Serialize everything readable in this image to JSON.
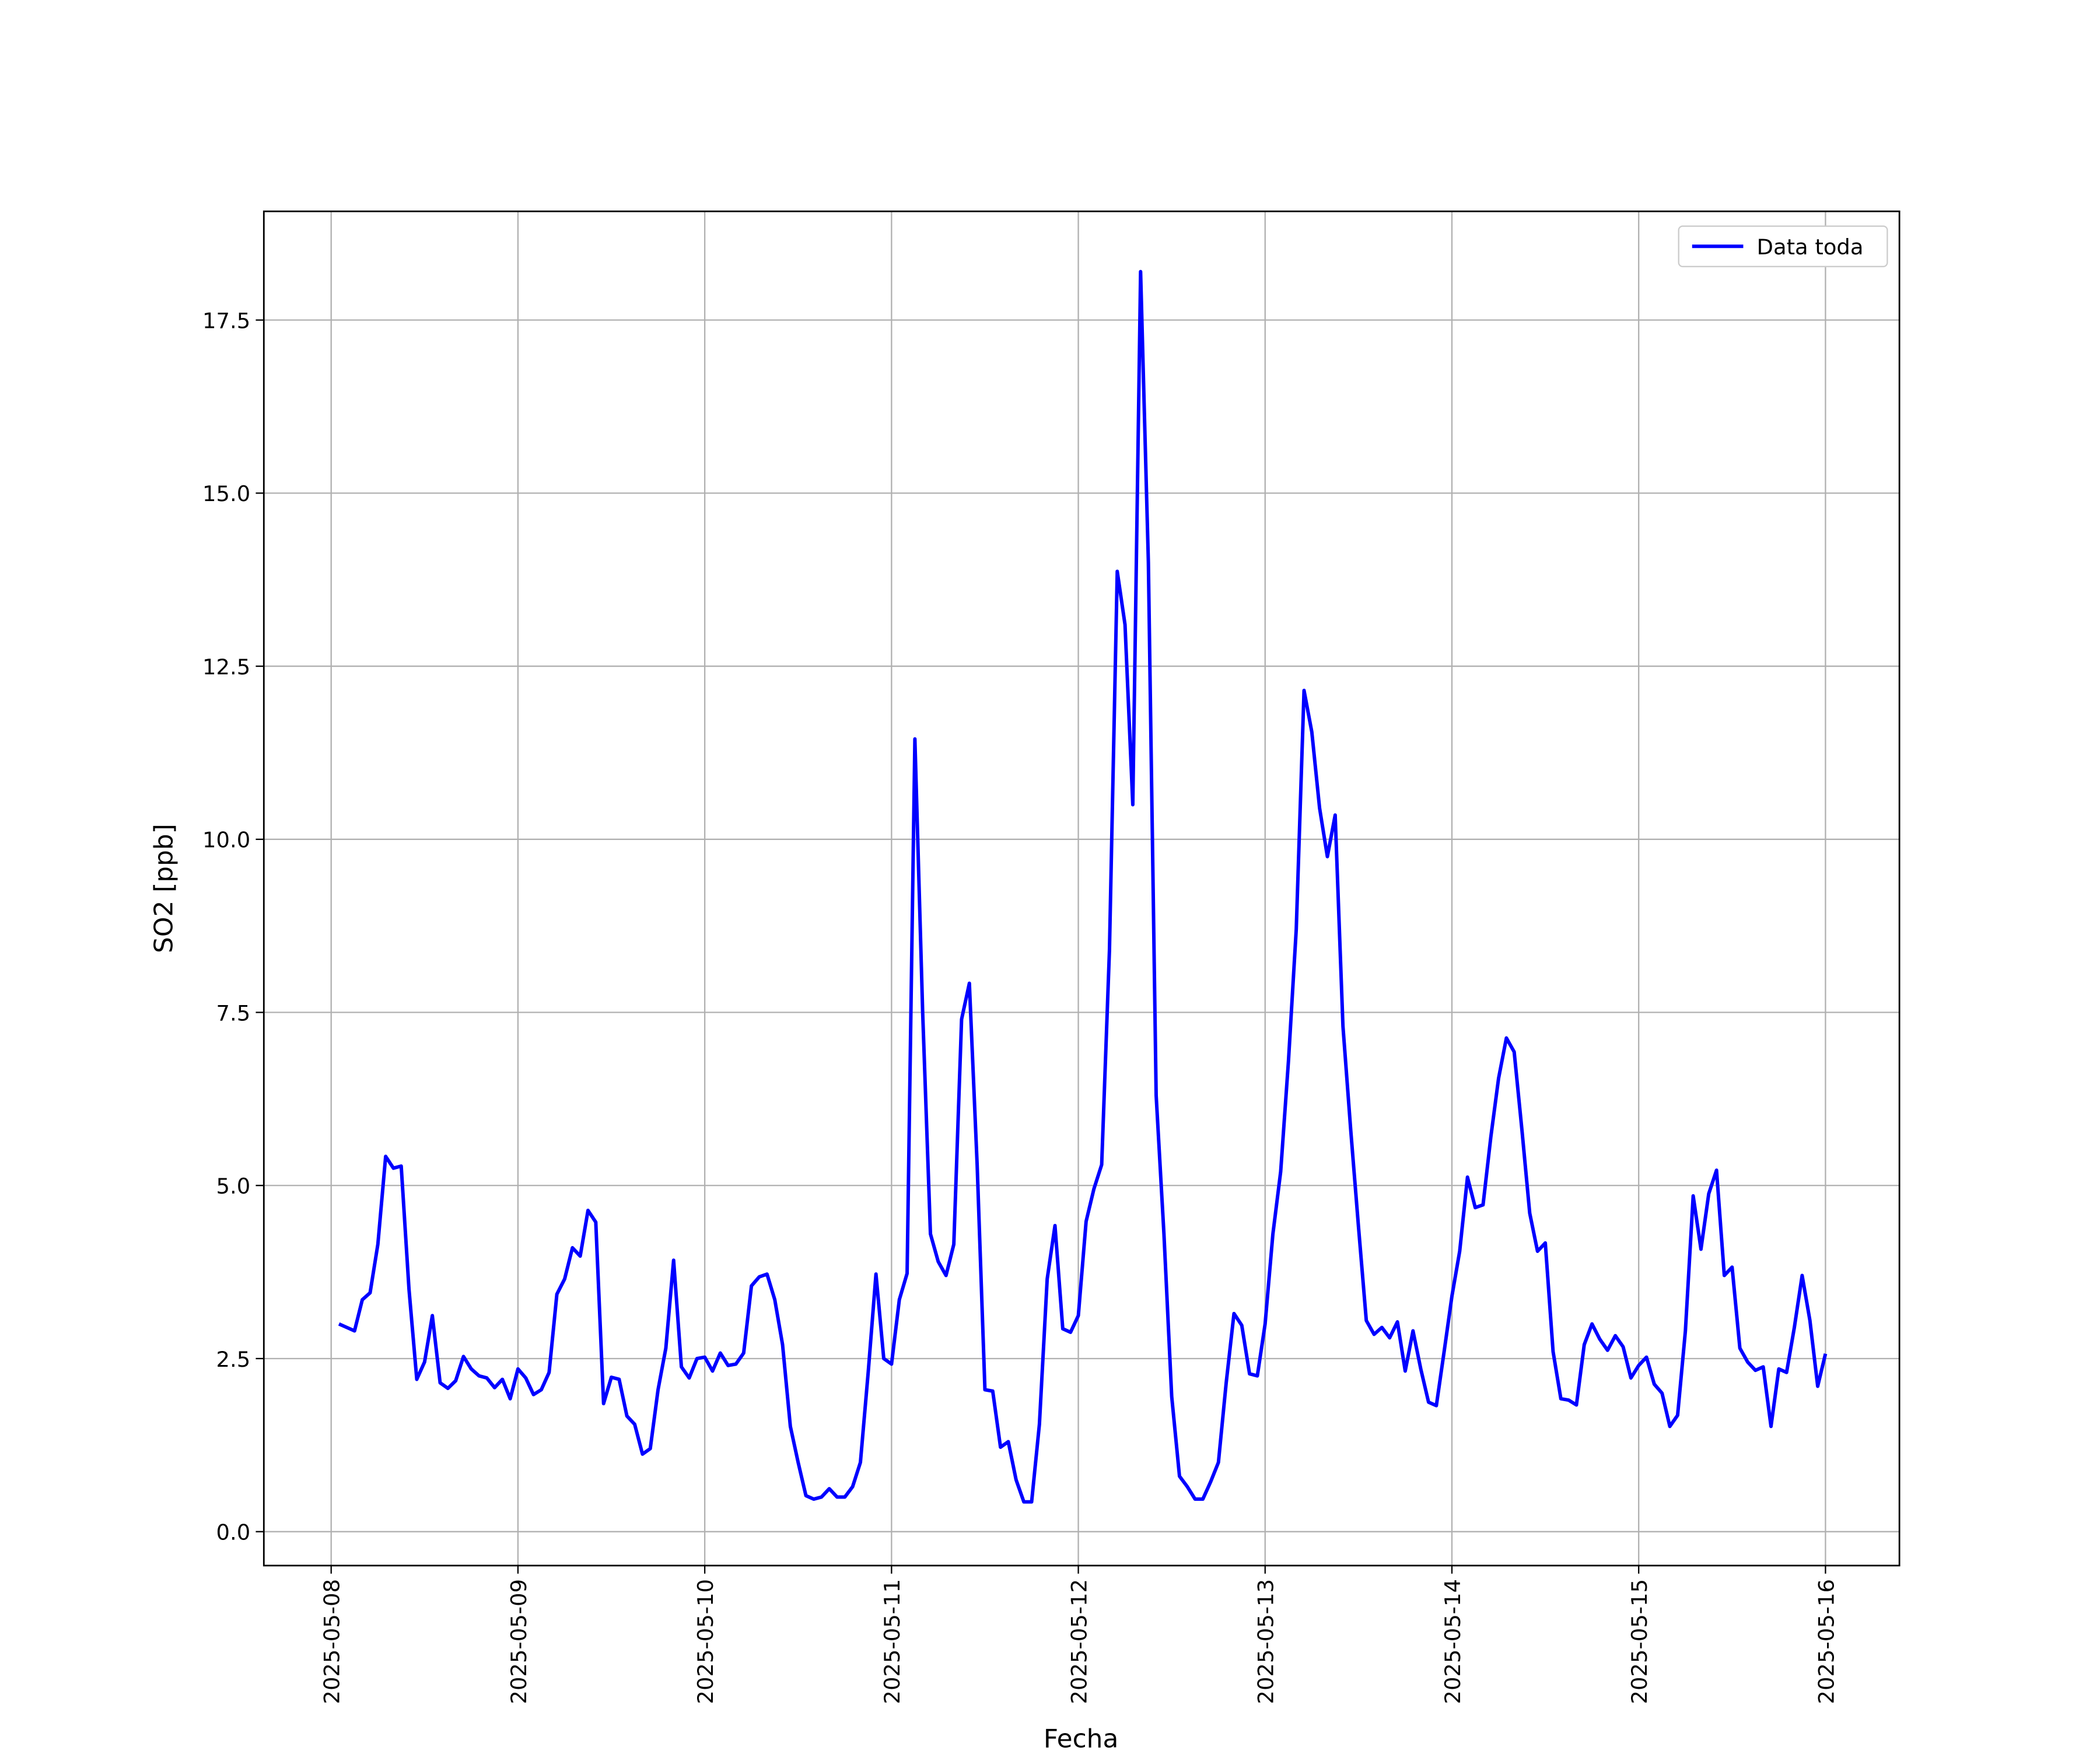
{
  "chart_data": {
    "type": "line",
    "xlabel": "Fecha",
    "ylabel": "SO2 [ppb]",
    "x": [
      1,
      2,
      3,
      4,
      5,
      6,
      7,
      8,
      9,
      10,
      11,
      12,
      13,
      14,
      15,
      16,
      17,
      18,
      19,
      20,
      21,
      22,
      23,
      24,
      25,
      26,
      27,
      28,
      29,
      30,
      31,
      32,
      33,
      34,
      35,
      36,
      37,
      38,
      39,
      40,
      41,
      42,
      43,
      44,
      45,
      46,
      47,
      48,
      49,
      50,
      51,
      52,
      53,
      54,
      55,
      56,
      57,
      58,
      59,
      60,
      61,
      62,
      63,
      64,
      65,
      66,
      67,
      68,
      69,
      70,
      71,
      72,
      73,
      74,
      75,
      76,
      77,
      78,
      79,
      80,
      81,
      82,
      83,
      84,
      85,
      86,
      87,
      88,
      89,
      90,
      91,
      92,
      93,
      94,
      95,
      96,
      97,
      98,
      99,
      100,
      101,
      102,
      103,
      104,
      105,
      106,
      107,
      108,
      109,
      110,
      111,
      112,
      113,
      114,
      115,
      116,
      117,
      118,
      119,
      120,
      121,
      122,
      123,
      124,
      125,
      126,
      127,
      128,
      129,
      130,
      131,
      132,
      133,
      134,
      135,
      136,
      137,
      138,
      139,
      140,
      141,
      142,
      143,
      144,
      145,
      146,
      147,
      148,
      149,
      150,
      151,
      152,
      153,
      154,
      155,
      156,
      157,
      158,
      159,
      160,
      161,
      162,
      163,
      164,
      165,
      166,
      167,
      168,
      169,
      170,
      171,
      172,
      173,
      174,
      175,
      176,
      177,
      178,
      179,
      180,
      181,
      182,
      183,
      184,
      185,
      186,
      187,
      188,
      189,
      190,
      191,
      192
    ],
    "series": [
      {
        "name": "Data toda",
        "color": "#0000ff",
        "values": [
          3.0,
          2.95,
          2.9,
          3.35,
          3.45,
          4.15,
          5.42,
          5.25,
          5.28,
          3.5,
          2.2,
          2.45,
          3.12,
          2.15,
          2.07,
          2.18,
          2.53,
          2.35,
          2.25,
          2.22,
          2.08,
          2.2,
          1.92,
          2.35,
          2.22,
          1.98,
          2.05,
          2.3,
          3.43,
          3.65,
          4.1,
          3.98,
          4.64,
          4.47,
          1.85,
          2.23,
          2.2,
          1.67,
          1.55,
          1.12,
          1.2,
          2.05,
          2.65,
          3.92,
          2.38,
          2.22,
          2.5,
          2.52,
          2.32,
          2.58,
          2.4,
          2.42,
          2.58,
          3.55,
          3.68,
          3.72,
          3.35,
          2.7,
          1.52,
          1.0,
          0.52,
          0.47,
          0.5,
          0.62,
          0.5,
          0.5,
          0.65,
          1.0,
          2.3,
          3.72,
          2.5,
          2.42,
          3.35,
          3.73,
          11.45,
          7.5,
          4.3,
          3.9,
          3.7,
          4.15,
          7.4,
          7.92,
          5.3,
          2.05,
          2.03,
          1.22,
          1.3,
          0.75,
          0.43,
          0.43,
          1.55,
          3.65,
          4.42,
          2.93,
          2.88,
          3.12,
          4.48,
          4.95,
          5.3,
          8.4,
          13.87,
          13.1,
          10.5,
          18.2,
          14.0,
          6.3,
          4.3,
          1.95,
          0.8,
          0.65,
          0.47,
          0.47,
          0.72,
          1.0,
          2.15,
          3.15,
          2.98,
          2.28,
          2.25,
          3.0,
          4.3,
          5.2,
          6.8,
          8.7,
          12.15,
          11.55,
          10.45,
          9.75,
          10.35,
          7.3,
          5.8,
          4.4,
          3.05,
          2.85,
          2.95,
          2.8,
          3.03,
          2.32,
          2.9,
          2.35,
          1.87,
          1.82,
          2.6,
          3.4,
          4.05,
          5.12,
          4.68,
          4.72,
          5.7,
          6.55,
          7.13,
          6.93,
          5.8,
          4.6,
          4.05,
          4.17,
          2.6,
          1.92,
          1.9,
          1.83,
          2.7,
          3.0,
          2.78,
          2.62,
          2.83,
          2.67,
          2.22,
          2.4,
          2.52,
          2.13,
          2.0,
          1.52,
          1.68,
          2.9,
          4.85,
          4.08,
          4.88,
          5.22,
          3.7,
          3.82,
          2.65,
          2.45,
          2.33,
          2.38,
          1.52,
          2.35,
          2.3,
          2.95,
          3.7,
          3.05,
          2.1,
          2.57
        ]
      }
    ],
    "xlim": [
      -8.65,
      201.5
    ],
    "xticks": [
      {
        "value": 0,
        "label": "2025-05-08"
      },
      {
        "value": 24,
        "label": "2025-05-09"
      },
      {
        "value": 48,
        "label": "2025-05-10"
      },
      {
        "value": 72,
        "label": "2025-05-11"
      },
      {
        "value": 96,
        "label": "2025-05-12"
      },
      {
        "value": 120,
        "label": "2025-05-13"
      },
      {
        "value": 144,
        "label": "2025-05-14"
      },
      {
        "value": 168,
        "label": "2025-05-15"
      },
      {
        "value": 192,
        "label": "2025-05-16"
      }
    ],
    "ylim": [
      -0.49,
      19.07
    ],
    "yticks": [
      {
        "value": 0,
        "label": "0.0"
      },
      2.5,
      {
        "value": 5,
        "label": "5.0"
      },
      7.5,
      {
        "value": 10,
        "label": "10.0"
      },
      12.5,
      {
        "value": 15,
        "label": "15.0"
      },
      17.5
    ],
    "grid": true,
    "legend": "upper right"
  }
}
